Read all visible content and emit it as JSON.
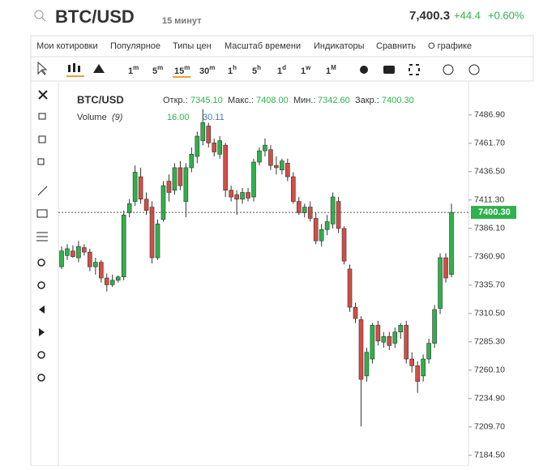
{
  "header": {
    "symbol": "BTC/USD",
    "interval": "15 минут",
    "price": "7,400.3",
    "change": "+44.4",
    "change_pct": "+0.60%"
  },
  "menu": [
    "Мои котировки",
    "Популярное",
    "Типы цен",
    "Масштаб времени",
    "Индикаторы",
    "Сравнить",
    "О графике"
  ],
  "intervals": [
    {
      "n": "1",
      "u": "m"
    },
    {
      "n": "5",
      "u": "m"
    },
    {
      "n": "15",
      "u": "m"
    },
    {
      "n": "30",
      "u": "m"
    },
    {
      "n": "1",
      "u": "h"
    },
    {
      "n": "5",
      "u": "h"
    },
    {
      "n": "1",
      "u": "d"
    },
    {
      "n": "1",
      "u": "w"
    },
    {
      "n": "1",
      "u": "M"
    }
  ],
  "legend": {
    "symbol": "BTC/USD",
    "open_label": "Откр.:",
    "open": "7345.10",
    "high_label": "Макс.:",
    "high": "7408.00",
    "low_label": "Мин.:",
    "low": "7342.60",
    "close_label": "Закр.:",
    "close": "7400.30",
    "volume_label": "Volume",
    "volume_param": "(9)",
    "volume_value": "16.00",
    "volume_ma": "30.11"
  },
  "chart_data": {
    "type": "candlestick",
    "up_color": "#2eb24b",
    "down_color": "#d24e45",
    "ylim": [
      7175,
      7517
    ],
    "yticks": [
      {
        "value": 7486.9,
        "label": "7486.90"
      },
      {
        "value": 7461.7,
        "label": "7461.70"
      },
      {
        "value": 7436.5,
        "label": "7436.50"
      },
      {
        "value": 7411.3,
        "label": "7411.30"
      },
      {
        "value": 7386.1,
        "label": "7386.10"
      },
      {
        "value": 7360.9,
        "label": "7360.90"
      },
      {
        "value": 7335.7,
        "label": "7335.70"
      },
      {
        "value": 7310.5,
        "label": "7310.50"
      },
      {
        "value": 7285.3,
        "label": "7285.30"
      },
      {
        "value": 7260.1,
        "label": "7260.10"
      },
      {
        "value": 7234.9,
        "label": "7234.90"
      },
      {
        "value": 7209.7,
        "label": "7209.70"
      },
      {
        "value": 7184.5,
        "label": "7184.50"
      }
    ],
    "last": {
      "value": 7400.3,
      "label": "7400.30"
    },
    "candles": [
      {
        "o": 7352,
        "h": 7370,
        "l": 7350,
        "c": 7366
      },
      {
        "o": 7362,
        "h": 7372,
        "l": 7358,
        "c": 7368
      },
      {
        "o": 7366,
        "h": 7371,
        "l": 7360,
        "c": 7361
      },
      {
        "o": 7360,
        "h": 7375,
        "l": 7356,
        "c": 7370
      },
      {
        "o": 7369,
        "h": 7372,
        "l": 7362,
        "c": 7365
      },
      {
        "o": 7365,
        "h": 7368,
        "l": 7348,
        "c": 7352
      },
      {
        "o": 7352,
        "h": 7360,
        "l": 7345,
        "c": 7356
      },
      {
        "o": 7356,
        "h": 7358,
        "l": 7338,
        "c": 7342
      },
      {
        "o": 7342,
        "h": 7346,
        "l": 7330,
        "c": 7336
      },
      {
        "o": 7336,
        "h": 7345,
        "l": 7334,
        "c": 7340
      },
      {
        "o": 7340,
        "h": 7344,
        "l": 7338,
        "c": 7343
      },
      {
        "o": 7343,
        "h": 7402,
        "l": 7340,
        "c": 7398
      },
      {
        "o": 7400,
        "h": 7412,
        "l": 7396,
        "c": 7408
      },
      {
        "o": 7410,
        "h": 7442,
        "l": 7406,
        "c": 7436
      },
      {
        "o": 7432,
        "h": 7440,
        "l": 7408,
        "c": 7412
      },
      {
        "o": 7412,
        "h": 7418,
        "l": 7398,
        "c": 7402
      },
      {
        "o": 7405,
        "h": 7410,
        "l": 7355,
        "c": 7360
      },
      {
        "o": 7360,
        "h": 7394,
        "l": 7358,
        "c": 7390
      },
      {
        "o": 7394,
        "h": 7428,
        "l": 7392,
        "c": 7424
      },
      {
        "o": 7428,
        "h": 7434,
        "l": 7410,
        "c": 7418
      },
      {
        "o": 7420,
        "h": 7444,
        "l": 7416,
        "c": 7440
      },
      {
        "o": 7440,
        "h": 7446,
        "l": 7420,
        "c": 7424
      },
      {
        "o": 7410,
        "h": 7444,
        "l": 7396,
        "c": 7440
      },
      {
        "o": 7440,
        "h": 7458,
        "l": 7436,
        "c": 7452
      },
      {
        "o": 7450,
        "h": 7472,
        "l": 7444,
        "c": 7468
      },
      {
        "o": 7464,
        "h": 7492,
        "l": 7460,
        "c": 7480
      },
      {
        "o": 7477,
        "h": 7480,
        "l": 7458,
        "c": 7462
      },
      {
        "o": 7462,
        "h": 7466,
        "l": 7450,
        "c": 7454
      },
      {
        "o": 7452,
        "h": 7468,
        "l": 7448,
        "c": 7464
      },
      {
        "o": 7460,
        "h": 7462,
        "l": 7414,
        "c": 7420
      },
      {
        "o": 7420,
        "h": 7424,
        "l": 7410,
        "c": 7414
      },
      {
        "o": 7416,
        "h": 7420,
        "l": 7398,
        "c": 7412
      },
      {
        "o": 7412,
        "h": 7422,
        "l": 7408,
        "c": 7418
      },
      {
        "o": 7418,
        "h": 7422,
        "l": 7410,
        "c": 7413
      },
      {
        "o": 7414,
        "h": 7448,
        "l": 7410,
        "c": 7445
      },
      {
        "o": 7445,
        "h": 7458,
        "l": 7442,
        "c": 7455
      },
      {
        "o": 7455,
        "h": 7466,
        "l": 7450,
        "c": 7460
      },
      {
        "o": 7456,
        "h": 7460,
        "l": 7438,
        "c": 7442
      },
      {
        "o": 7442,
        "h": 7450,
        "l": 7434,
        "c": 7440
      },
      {
        "o": 7438,
        "h": 7448,
        "l": 7434,
        "c": 7446
      },
      {
        "o": 7444,
        "h": 7448,
        "l": 7428,
        "c": 7432
      },
      {
        "o": 7432,
        "h": 7436,
        "l": 7408,
        "c": 7410
      },
      {
        "o": 7410,
        "h": 7414,
        "l": 7398,
        "c": 7400
      },
      {
        "o": 7400,
        "h": 7408,
        "l": 7396,
        "c": 7405
      },
      {
        "o": 7405,
        "h": 7410,
        "l": 7392,
        "c": 7395
      },
      {
        "o": 7395,
        "h": 7400,
        "l": 7372,
        "c": 7375
      },
      {
        "o": 7375,
        "h": 7390,
        "l": 7370,
        "c": 7385
      },
      {
        "o": 7385,
        "h": 7398,
        "l": 7380,
        "c": 7392
      },
      {
        "o": 7390,
        "h": 7418,
        "l": 7386,
        "c": 7414
      },
      {
        "o": 7410,
        "h": 7414,
        "l": 7382,
        "c": 7386
      },
      {
        "o": 7386,
        "h": 7388,
        "l": 7354,
        "c": 7357
      },
      {
        "o": 7350,
        "h": 7354,
        "l": 7312,
        "c": 7316
      },
      {
        "o": 7316,
        "h": 7320,
        "l": 7302,
        "c": 7306
      },
      {
        "o": 7305,
        "h": 7308,
        "l": 7210,
        "c": 7252
      },
      {
        "o": 7255,
        "h": 7280,
        "l": 7250,
        "c": 7276
      },
      {
        "o": 7270,
        "h": 7302,
        "l": 7266,
        "c": 7300
      },
      {
        "o": 7300,
        "h": 7304,
        "l": 7282,
        "c": 7286
      },
      {
        "o": 7285,
        "h": 7294,
        "l": 7280,
        "c": 7290
      },
      {
        "o": 7290,
        "h": 7294,
        "l": 7278,
        "c": 7282
      },
      {
        "o": 7284,
        "h": 7298,
        "l": 7280,
        "c": 7294
      },
      {
        "o": 7294,
        "h": 7302,
        "l": 7288,
        "c": 7300
      },
      {
        "o": 7300,
        "h": 7304,
        "l": 7266,
        "c": 7270
      },
      {
        "o": 7270,
        "h": 7276,
        "l": 7258,
        "c": 7264
      },
      {
        "o": 7264,
        "h": 7268,
        "l": 7240,
        "c": 7250
      },
      {
        "o": 7255,
        "h": 7274,
        "l": 7250,
        "c": 7270
      },
      {
        "o": 7270,
        "h": 7288,
        "l": 7266,
        "c": 7284
      },
      {
        "o": 7284,
        "h": 7318,
        "l": 7280,
        "c": 7314
      },
      {
        "o": 7315,
        "h": 7364,
        "l": 7310,
        "c": 7360
      },
      {
        "o": 7360,
        "h": 7364,
        "l": 7338,
        "c": 7342
      },
      {
        "o": 7345.1,
        "h": 7408,
        "l": 7342.6,
        "c": 7400.3
      }
    ]
  }
}
